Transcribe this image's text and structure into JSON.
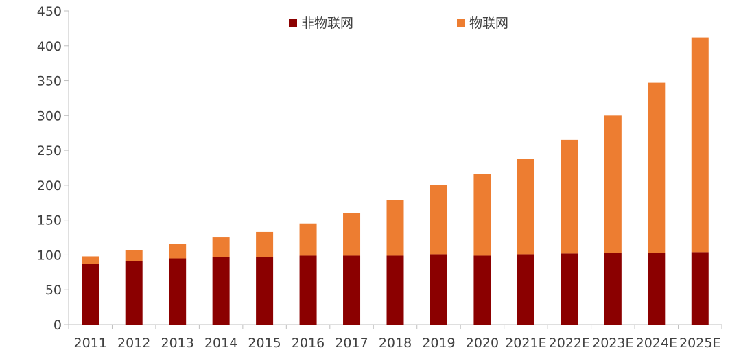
{
  "chart_data": {
    "type": "bar",
    "stacked": true,
    "categories": [
      "2011",
      "2012",
      "2013",
      "2014",
      "2015",
      "2016",
      "2017",
      "2018",
      "2019",
      "2020",
      "2021E",
      "2022E",
      "2023E",
      "2024E",
      "2025E"
    ],
    "series": [
      {
        "name": "非物联网",
        "color": "#8b0000",
        "values": [
          87,
          91,
          95,
          97,
          97,
          99,
          99,
          99,
          101,
          99,
          101,
          102,
          103,
          103,
          104
        ]
      },
      {
        "name": "物联网",
        "color": "#ed7d31",
        "values": [
          11,
          16,
          21,
          28,
          36,
          46,
          61,
          80,
          99,
          117,
          137,
          163,
          197,
          244,
          308
        ]
      }
    ],
    "ylim": [
      0,
      450
    ],
    "yticks": [
      0,
      50,
      100,
      150,
      200,
      250,
      300,
      350,
      400,
      450
    ],
    "title": "",
    "xlabel": "",
    "ylabel": "",
    "grid": false,
    "legend_position": "top-center"
  }
}
